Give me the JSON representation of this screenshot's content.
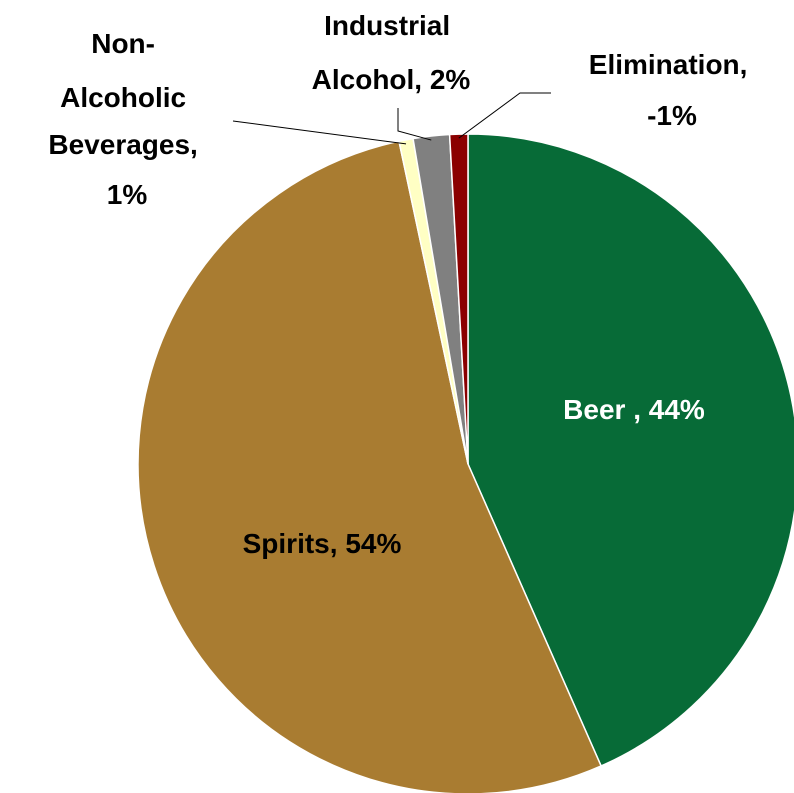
{
  "chart_data": {
    "type": "pie",
    "start": "12 o'clock",
    "direction": "clockwise",
    "slices": [
      {
        "name": "Beer",
        "label_text": "Beer , 44%",
        "value": 44,
        "color": "#076B37"
      },
      {
        "name": "Spirits",
        "label_text": "Spirits, 54%",
        "value": 54,
        "color": "#A97C31"
      },
      {
        "name": "Non-Alcoholic Beverages",
        "label_lines": [
          "Non-",
          "Alcoholic",
          "Beverages,",
          "1%"
        ],
        "value": 0.7,
        "color": "#FFFFC4"
      },
      {
        "name": "Industrial Alcohol",
        "label_lines": [
          "Industrial",
          "Alcohol, 2%"
        ],
        "value": 1.8,
        "color": "#808080"
      },
      {
        "name": "Elimination",
        "label_lines": [
          "Elimination,",
          "-1%"
        ],
        "value": 0.9,
        "display_value": -1,
        "color": "#8B0000"
      }
    ]
  }
}
